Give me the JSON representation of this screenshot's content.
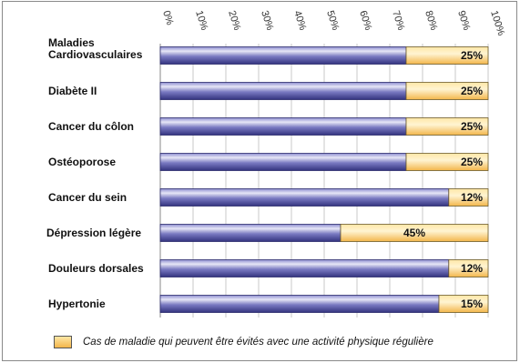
{
  "chart_data": {
    "type": "bar",
    "orientation": "horizontal",
    "stacked": true,
    "categories": [
      "Maladies Cardiovasculaires",
      "Diabète II",
      "Cancer du côlon",
      "Ostéoporose",
      "Cancer du sein",
      "Dépression légère",
      "Douleurs dorsales",
      "Hypertonie"
    ],
    "series": [
      {
        "values": [
          75,
          75,
          75,
          75,
          88,
          55,
          88,
          85
        ],
        "color": "#4a4a9c"
      },
      {
        "name": "Cas de maladie qui peuvent être évités avec une activité physique régulière",
        "values": [
          25,
          25,
          25,
          25,
          12,
          45,
          12,
          15
        ],
        "color": "#f3b64a"
      }
    ],
    "data_labels": [
      "25%",
      "25%",
      "25%",
      "25%",
      "12%",
      "45%",
      "12%",
      "15%"
    ],
    "xticks": [
      "0%",
      "10%",
      "20%",
      "30%",
      "40%",
      "50%",
      "60%",
      "70%",
      "80%",
      "90%",
      "100%"
    ],
    "xlim": [
      0,
      100
    ],
    "grid": true,
    "legend_position": "bottom"
  }
}
